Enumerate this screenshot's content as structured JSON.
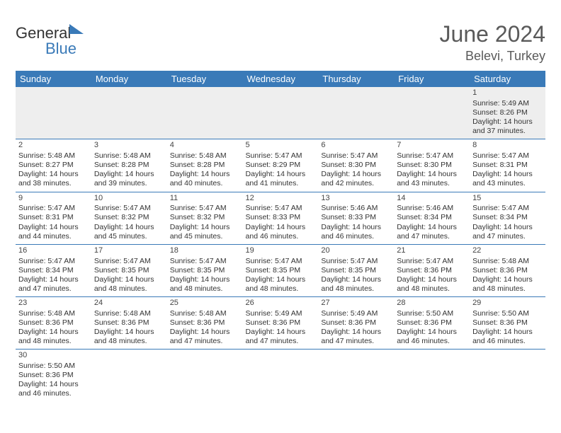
{
  "logo": {
    "textA": "General",
    "textB": "Blue"
  },
  "title": "June 2024",
  "location": "Belevi, Turkey",
  "colors": {
    "header_bg": "#3a7ab8",
    "header_text": "#ffffff",
    "border": "#3a7ab8",
    "first_row_bg": "#eeeeee",
    "body_text": "#333333",
    "title_text": "#5a5a5a"
  },
  "weekdays": [
    "Sunday",
    "Monday",
    "Tuesday",
    "Wednesday",
    "Thursday",
    "Friday",
    "Saturday"
  ],
  "weeks": [
    [
      null,
      null,
      null,
      null,
      null,
      null,
      {
        "n": "1",
        "sr": "Sunrise: 5:49 AM",
        "ss": "Sunset: 8:26 PM",
        "d1": "Daylight: 14 hours",
        "d2": "and 37 minutes."
      }
    ],
    [
      {
        "n": "2",
        "sr": "Sunrise: 5:48 AM",
        "ss": "Sunset: 8:27 PM",
        "d1": "Daylight: 14 hours",
        "d2": "and 38 minutes."
      },
      {
        "n": "3",
        "sr": "Sunrise: 5:48 AM",
        "ss": "Sunset: 8:28 PM",
        "d1": "Daylight: 14 hours",
        "d2": "and 39 minutes."
      },
      {
        "n": "4",
        "sr": "Sunrise: 5:48 AM",
        "ss": "Sunset: 8:28 PM",
        "d1": "Daylight: 14 hours",
        "d2": "and 40 minutes."
      },
      {
        "n": "5",
        "sr": "Sunrise: 5:47 AM",
        "ss": "Sunset: 8:29 PM",
        "d1": "Daylight: 14 hours",
        "d2": "and 41 minutes."
      },
      {
        "n": "6",
        "sr": "Sunrise: 5:47 AM",
        "ss": "Sunset: 8:30 PM",
        "d1": "Daylight: 14 hours",
        "d2": "and 42 minutes."
      },
      {
        "n": "7",
        "sr": "Sunrise: 5:47 AM",
        "ss": "Sunset: 8:30 PM",
        "d1": "Daylight: 14 hours",
        "d2": "and 43 minutes."
      },
      {
        "n": "8",
        "sr": "Sunrise: 5:47 AM",
        "ss": "Sunset: 8:31 PM",
        "d1": "Daylight: 14 hours",
        "d2": "and 43 minutes."
      }
    ],
    [
      {
        "n": "9",
        "sr": "Sunrise: 5:47 AM",
        "ss": "Sunset: 8:31 PM",
        "d1": "Daylight: 14 hours",
        "d2": "and 44 minutes."
      },
      {
        "n": "10",
        "sr": "Sunrise: 5:47 AM",
        "ss": "Sunset: 8:32 PM",
        "d1": "Daylight: 14 hours",
        "d2": "and 45 minutes."
      },
      {
        "n": "11",
        "sr": "Sunrise: 5:47 AM",
        "ss": "Sunset: 8:32 PM",
        "d1": "Daylight: 14 hours",
        "d2": "and 45 minutes."
      },
      {
        "n": "12",
        "sr": "Sunrise: 5:47 AM",
        "ss": "Sunset: 8:33 PM",
        "d1": "Daylight: 14 hours",
        "d2": "and 46 minutes."
      },
      {
        "n": "13",
        "sr": "Sunrise: 5:46 AM",
        "ss": "Sunset: 8:33 PM",
        "d1": "Daylight: 14 hours",
        "d2": "and 46 minutes."
      },
      {
        "n": "14",
        "sr": "Sunrise: 5:46 AM",
        "ss": "Sunset: 8:34 PM",
        "d1": "Daylight: 14 hours",
        "d2": "and 47 minutes."
      },
      {
        "n": "15",
        "sr": "Sunrise: 5:47 AM",
        "ss": "Sunset: 8:34 PM",
        "d1": "Daylight: 14 hours",
        "d2": "and 47 minutes."
      }
    ],
    [
      {
        "n": "16",
        "sr": "Sunrise: 5:47 AM",
        "ss": "Sunset: 8:34 PM",
        "d1": "Daylight: 14 hours",
        "d2": "and 47 minutes."
      },
      {
        "n": "17",
        "sr": "Sunrise: 5:47 AM",
        "ss": "Sunset: 8:35 PM",
        "d1": "Daylight: 14 hours",
        "d2": "and 48 minutes."
      },
      {
        "n": "18",
        "sr": "Sunrise: 5:47 AM",
        "ss": "Sunset: 8:35 PM",
        "d1": "Daylight: 14 hours",
        "d2": "and 48 minutes."
      },
      {
        "n": "19",
        "sr": "Sunrise: 5:47 AM",
        "ss": "Sunset: 8:35 PM",
        "d1": "Daylight: 14 hours",
        "d2": "and 48 minutes."
      },
      {
        "n": "20",
        "sr": "Sunrise: 5:47 AM",
        "ss": "Sunset: 8:35 PM",
        "d1": "Daylight: 14 hours",
        "d2": "and 48 minutes."
      },
      {
        "n": "21",
        "sr": "Sunrise: 5:47 AM",
        "ss": "Sunset: 8:36 PM",
        "d1": "Daylight: 14 hours",
        "d2": "and 48 minutes."
      },
      {
        "n": "22",
        "sr": "Sunrise: 5:48 AM",
        "ss": "Sunset: 8:36 PM",
        "d1": "Daylight: 14 hours",
        "d2": "and 48 minutes."
      }
    ],
    [
      {
        "n": "23",
        "sr": "Sunrise: 5:48 AM",
        "ss": "Sunset: 8:36 PM",
        "d1": "Daylight: 14 hours",
        "d2": "and 48 minutes."
      },
      {
        "n": "24",
        "sr": "Sunrise: 5:48 AM",
        "ss": "Sunset: 8:36 PM",
        "d1": "Daylight: 14 hours",
        "d2": "and 48 minutes."
      },
      {
        "n": "25",
        "sr": "Sunrise: 5:48 AM",
        "ss": "Sunset: 8:36 PM",
        "d1": "Daylight: 14 hours",
        "d2": "and 47 minutes."
      },
      {
        "n": "26",
        "sr": "Sunrise: 5:49 AM",
        "ss": "Sunset: 8:36 PM",
        "d1": "Daylight: 14 hours",
        "d2": "and 47 minutes."
      },
      {
        "n": "27",
        "sr": "Sunrise: 5:49 AM",
        "ss": "Sunset: 8:36 PM",
        "d1": "Daylight: 14 hours",
        "d2": "and 47 minutes."
      },
      {
        "n": "28",
        "sr": "Sunrise: 5:50 AM",
        "ss": "Sunset: 8:36 PM",
        "d1": "Daylight: 14 hours",
        "d2": "and 46 minutes."
      },
      {
        "n": "29",
        "sr": "Sunrise: 5:50 AM",
        "ss": "Sunset: 8:36 PM",
        "d1": "Daylight: 14 hours",
        "d2": "and 46 minutes."
      }
    ],
    [
      {
        "n": "30",
        "sr": "Sunrise: 5:50 AM",
        "ss": "Sunset: 8:36 PM",
        "d1": "Daylight: 14 hours",
        "d2": "and 46 minutes."
      },
      null,
      null,
      null,
      null,
      null,
      null
    ]
  ]
}
